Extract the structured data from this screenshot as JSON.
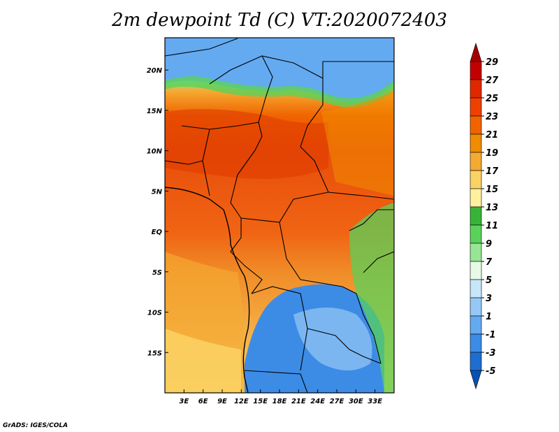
{
  "title": "2m dewpoint Td (C) VT:2020072403",
  "credit": "GrADS: IGES/COLA",
  "map": {
    "lon_range": [
      0,
      36
    ],
    "lat_range": [
      -20,
      24
    ],
    "x_ticks": [
      {
        "lon": 3,
        "label": "3E"
      },
      {
        "lon": 6,
        "label": "6E"
      },
      {
        "lon": 9,
        "label": "9E"
      },
      {
        "lon": 12,
        "label": "12E"
      },
      {
        "lon": 15,
        "label": "15E"
      },
      {
        "lon": 18,
        "label": "18E"
      },
      {
        "lon": 21,
        "label": "21E"
      },
      {
        "lon": 24,
        "label": "24E"
      },
      {
        "lon": 27,
        "label": "27E"
      },
      {
        "lon": 30,
        "label": "30E"
      },
      {
        "lon": 33,
        "label": "33E"
      }
    ],
    "y_ticks": [
      {
        "lat": 20,
        "label": "20N"
      },
      {
        "lat": 15,
        "label": "15N"
      },
      {
        "lat": 10,
        "label": "10N"
      },
      {
        "lat": 5,
        "label": "5N"
      },
      {
        "lat": 0,
        "label": "EQ"
      },
      {
        "lat": -5,
        "label": "5S"
      },
      {
        "lat": -10,
        "label": "10S"
      },
      {
        "lat": -15,
        "label": "15S"
      }
    ]
  },
  "colorbar": {
    "labels": [
      "29",
      "27",
      "25",
      "23",
      "21",
      "19",
      "17",
      "15",
      "13",
      "11",
      "9",
      "7",
      "5",
      "3",
      "1",
      "-1",
      "-3",
      "-5"
    ],
    "colors": [
      "#a50000",
      "#c30000",
      "#e02800",
      "#f04000",
      "#f06400",
      "#f08c00",
      "#f5aa32",
      "#fad264",
      "#fff0a0",
      "#37b437",
      "#5ad25a",
      "#96e696",
      "#e6fae6",
      "#c8e6fa",
      "#96c8f5",
      "#64aaf0",
      "#3c8ce6",
      "#1e6ed2",
      "#0a50b4"
    ]
  }
}
